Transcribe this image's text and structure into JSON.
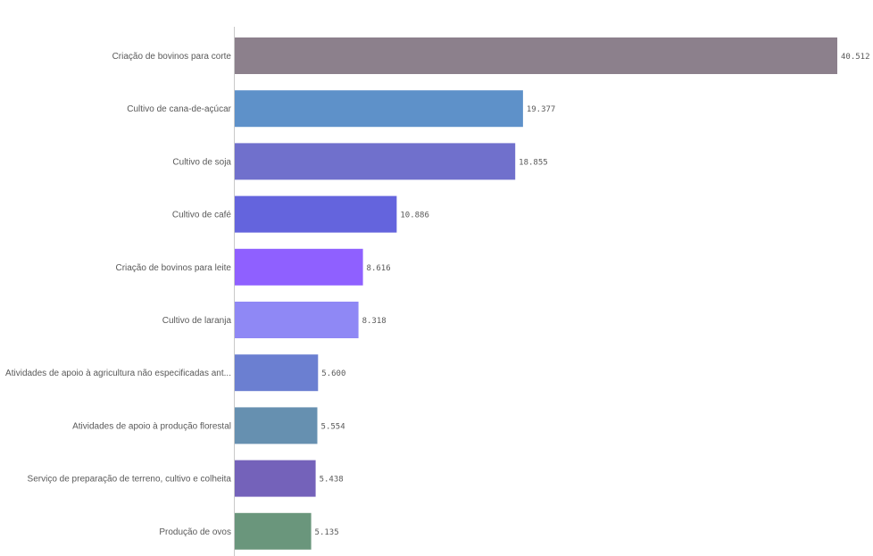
{
  "chart_data": {
    "type": "bar",
    "orientation": "horizontal",
    "categories": [
      "Criação de bovinos para corte",
      "Cultivo de cana-de-açúcar",
      "Cultivo de soja",
      "Cultivo de café",
      "Criação de bovinos para leite",
      "Cultivo de laranja",
      "Atividades de apoio à agricultura não especificadas ant...",
      "Atividades de apoio à produção florestal",
      "Serviço de preparação de terreno, cultivo e colheita",
      "Produção de ovos"
    ],
    "values": [
      40512,
      19377,
      18855,
      10886,
      8616,
      8318,
      5600,
      5554,
      5438,
      5135
    ],
    "value_labels": [
      "40.512",
      "19.377",
      "18.855",
      "10.886",
      "8.616",
      "8.318",
      "5.600",
      "5.554",
      "5.438",
      "5.135"
    ],
    "colors": [
      "#8c808c",
      "#5e91c9",
      "#7070cc",
      "#6464dd",
      "#8f60ff",
      "#8f88f5",
      "#6b7fd1",
      "#6690b0",
      "#7462ba",
      "#6a967c"
    ],
    "xlim": [
      0,
      40512
    ],
    "grid": false,
    "legend": "none",
    "title": "",
    "xlabel": "",
    "ylabel": ""
  }
}
